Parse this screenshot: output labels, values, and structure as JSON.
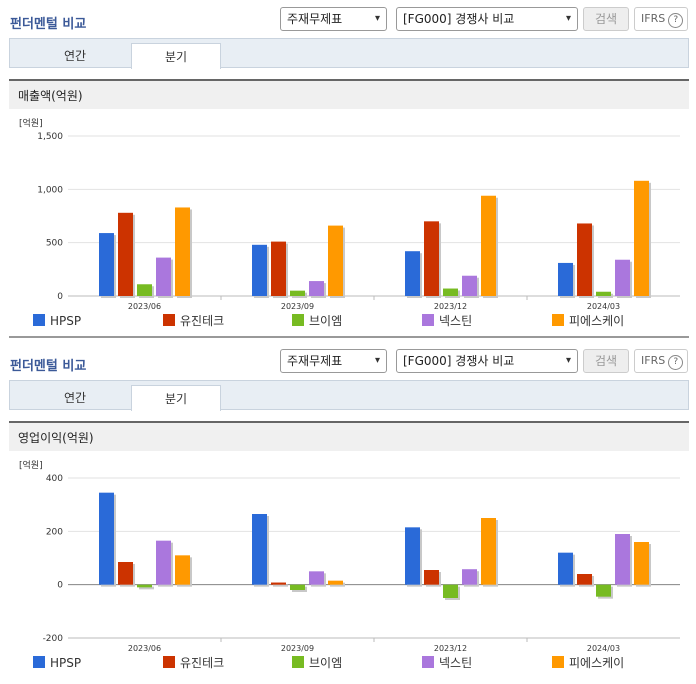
{
  "panels": [
    {
      "title": "펀더멘털 비교",
      "select1": "주재무제표",
      "select2": "[FG000] 경쟁사 비교",
      "search_label": "검색",
      "ifrs_label": "IFRS",
      "help_glyph": "?",
      "tabs": [
        "연간",
        "분기"
      ],
      "active_tab": "분기",
      "section_title": "매출액(억원)",
      "unit_label": "[억원]"
    },
    {
      "title": "펀더멘털 비교",
      "select1": "주재무제표",
      "select2": "[FG000] 경쟁사 비교",
      "search_label": "검색",
      "ifrs_label": "IFRS",
      "help_glyph": "?",
      "tabs": [
        "연간",
        "분기"
      ],
      "active_tab": "분기",
      "section_title": "영업이익(억원)",
      "unit_label": "[억원]"
    }
  ],
  "colors": {
    "HPSP": "#2a6ad8",
    "유진테크": "#cc3300",
    "브이엠": "#77bb22",
    "넥스틴": "#aa77dd",
    "피에스케이": "#ff9900"
  },
  "chart_data": [
    {
      "type": "bar",
      "categories": [
        "2023/06",
        "2023/09",
        "2023/12",
        "2024/03"
      ],
      "ylim": [
        0,
        1500
      ],
      "yticks": [
        "0",
        "500",
        "1,000",
        "1,500"
      ],
      "ytick_values": [
        0,
        500,
        1000,
        1500
      ],
      "series": [
        {
          "name": "HPSP",
          "values": [
            590,
            480,
            420,
            310
          ]
        },
        {
          "name": "유진테크",
          "values": [
            780,
            510,
            700,
            680
          ]
        },
        {
          "name": "브이엠",
          "values": [
            110,
            50,
            70,
            40
          ]
        },
        {
          "name": "넥스틴",
          "values": [
            360,
            140,
            190,
            340
          ]
        },
        {
          "name": "피에스케이",
          "values": [
            830,
            660,
            940,
            1080
          ]
        }
      ]
    },
    {
      "type": "bar",
      "categories": [
        "2023/06",
        "2023/09",
        "2023/12",
        "2024/03"
      ],
      "ylim": [
        -200,
        400
      ],
      "yticks": [
        "-200",
        "0",
        "200",
        "400"
      ],
      "ytick_values": [
        -200,
        0,
        200,
        400
      ],
      "series": [
        {
          "name": "HPSP",
          "values": [
            345,
            265,
            215,
            120
          ]
        },
        {
          "name": "유진테크",
          "values": [
            85,
            8,
            55,
            40
          ]
        },
        {
          "name": "브이엠",
          "values": [
            -10,
            -20,
            -50,
            -45
          ]
        },
        {
          "name": "넥스틴",
          "values": [
            165,
            50,
            58,
            190
          ]
        },
        {
          "name": "피에스케이",
          "values": [
            110,
            15,
            250,
            160
          ]
        }
      ]
    }
  ]
}
